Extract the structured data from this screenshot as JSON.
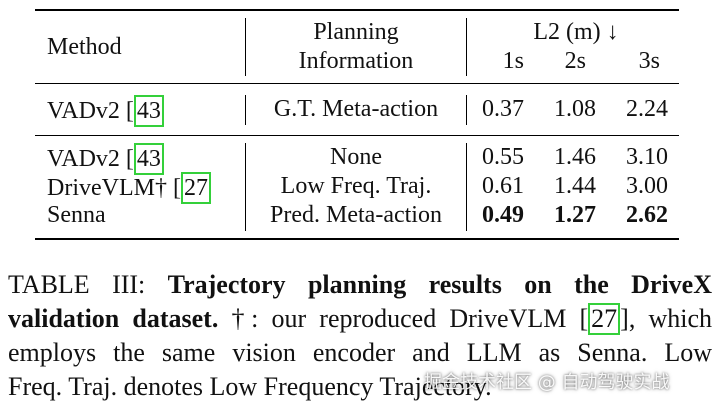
{
  "table": {
    "headers": {
      "method": "Method",
      "planning_line1": "Planning",
      "planning_line2": "Information",
      "l2": "L2 (m) ↓",
      "t1": "1s",
      "t2": "2s",
      "t3": "3s"
    },
    "rows": [
      {
        "method": "VADv2",
        "cite": "43",
        "planning": "G.T. Meta-action",
        "v1": "0.37",
        "v2": "1.08",
        "v3": "2.24"
      },
      {
        "method": "VADv2",
        "cite": "43",
        "planning": "None",
        "v1": "0.55",
        "v2": "1.46",
        "v3": "3.10"
      },
      {
        "method": "DriveVLM†",
        "cite": "27",
        "planning": "Low Freq. Traj.",
        "v1": "0.61",
        "v2": "1.44",
        "v3": "3.00"
      },
      {
        "method": "Senna",
        "cite": "",
        "planning": "Pred. Meta-action",
        "v1": "0.49",
        "v2": "1.27",
        "v3": "2.62"
      }
    ]
  },
  "caption": {
    "label": "TABLE III: ",
    "bold_line1": "Trajectory planning results on the DriveX",
    "bold_line2": "validation dataset.",
    "text_line2_a": " †: our reproduced DriveVLM [",
    "cite": "27",
    "text_line2_b": "], which",
    "line3": "employs the same vision encoder and LLM as Senna. Low",
    "line4": "Freq. Traj. denotes Low Frequency Trajectory."
  },
  "watermark": "掘金技术社区 @ 自动驾驶实战"
}
